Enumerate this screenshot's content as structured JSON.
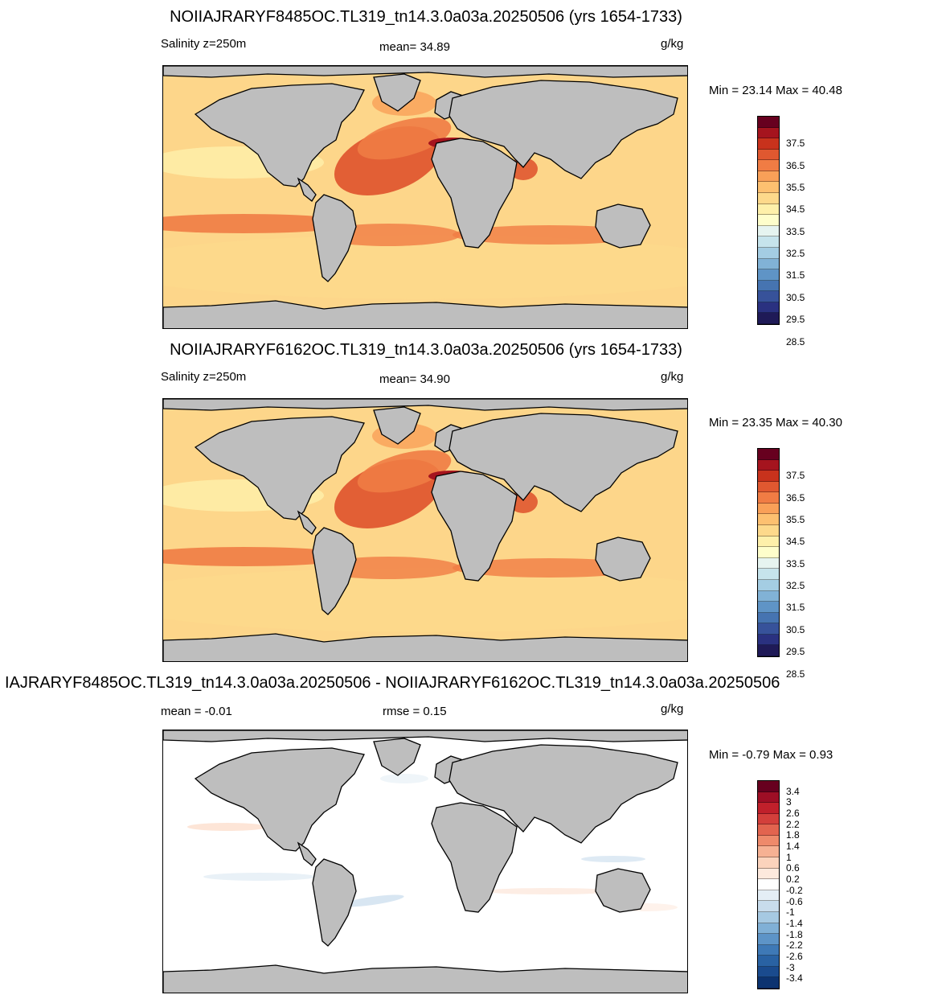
{
  "panels": [
    {
      "title": "NOIIAJRARYF8485OC.TL319_tn14.3.0a03a.20250506 (yrs 1654-1733)",
      "left_label": "Salinity z=250m",
      "center_label": "mean=  34.89",
      "units": "g/kg",
      "minmax": "Min =  23.14 Max =  40.48",
      "colorbar_ticks": [
        "37.5",
        "36.5",
        "35.5",
        "34.5",
        "33.5",
        "32.5",
        "31.5",
        "30.5",
        "29.5",
        "28.5"
      ]
    },
    {
      "title": "NOIIAJRARYF6162OC.TL319_tn14.3.0a03a.20250506 (yrs 1654-1733)",
      "left_label": "Salinity z=250m",
      "center_label": "mean=  34.90",
      "units": "g/kg",
      "minmax": "Min =  23.35 Max =  40.30",
      "colorbar_ticks": [
        "37.5",
        "36.5",
        "35.5",
        "34.5",
        "33.5",
        "32.5",
        "31.5",
        "30.5",
        "29.5",
        "28.5"
      ]
    },
    {
      "title": "IAJRARYF8485OC.TL319_tn14.3.0a03a.20250506 - NOIIAJRARYF6162OC.TL319_tn14.3.0a03a.20250506",
      "left_label": "mean =  -0.01",
      "center_label": "rmse =   0.15",
      "units": "g/kg",
      "minmax": "Min =  -0.79 Max =   0.93",
      "colorbar_ticks": [
        "3.4",
        "3",
        "2.6",
        "2.2",
        "1.8",
        "1.4",
        "1",
        "0.6",
        "0.2",
        "-0.2",
        "-0.6",
        "-1",
        "-1.4",
        "-1.8",
        "-2.2",
        "-2.6",
        "-3",
        "-3.4"
      ]
    }
  ],
  "colors": {
    "land": "#bebebe",
    "ocean_base_abs": "#fdd68a",
    "ocean_base_diff": "#ffffff",
    "salinity_scale": [
      "#67001f",
      "#a5141e",
      "#c8321c",
      "#e05830",
      "#f07c44",
      "#f9a058",
      "#fdc070",
      "#fdd98b",
      "#fef0aa",
      "#fefecb",
      "#e6f4f0",
      "#c6e4ec",
      "#a4cde3",
      "#81b2d6",
      "#5f94c6",
      "#4674b1",
      "#37529a",
      "#2a3180",
      "#1f1a57"
    ],
    "diff_scale": [
      "#67001f",
      "#9e0e25",
      "#c0202b",
      "#d33f3b",
      "#e2644f",
      "#ee8a6b",
      "#f6b193",
      "#fbd3bc",
      "#fde9dd",
      "#ffffff",
      "#e4eef5",
      "#c8dcec",
      "#a6c9e2",
      "#80b0d6",
      "#5d94c7",
      "#3e79b6",
      "#2962a3",
      "#1a4b8e",
      "#0c3370"
    ]
  }
}
